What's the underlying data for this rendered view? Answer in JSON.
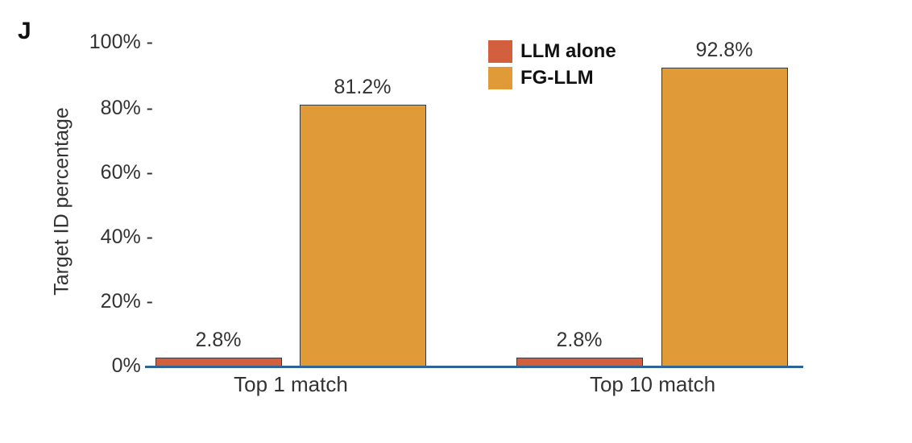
{
  "panel_letter": "J",
  "colors": {
    "llm_alone": "#d2603e",
    "fg_llm": "#e09a38",
    "axis": "#2f6594"
  },
  "chart_data": {
    "type": "bar",
    "title": "",
    "xlabel": "",
    "ylabel": "Target ID percentage",
    "ylim": [
      0,
      100
    ],
    "yticks": [
      "0%",
      "20%",
      "40%",
      "60%",
      "80%",
      "100%"
    ],
    "grid": false,
    "legend_position": "top-center",
    "categories": [
      "Top 1 match",
      "Top 10 match"
    ],
    "series": [
      {
        "name": "LLM alone",
        "values": [
          2.8,
          2.8
        ],
        "labels": [
          "2.8%",
          "2.8%"
        ],
        "color": "#d2603e"
      },
      {
        "name": "FG-LLM",
        "values": [
          81.2,
          92.8
        ],
        "labels": [
          "81.2%",
          "92.8%"
        ],
        "color": "#e09a38"
      }
    ]
  }
}
